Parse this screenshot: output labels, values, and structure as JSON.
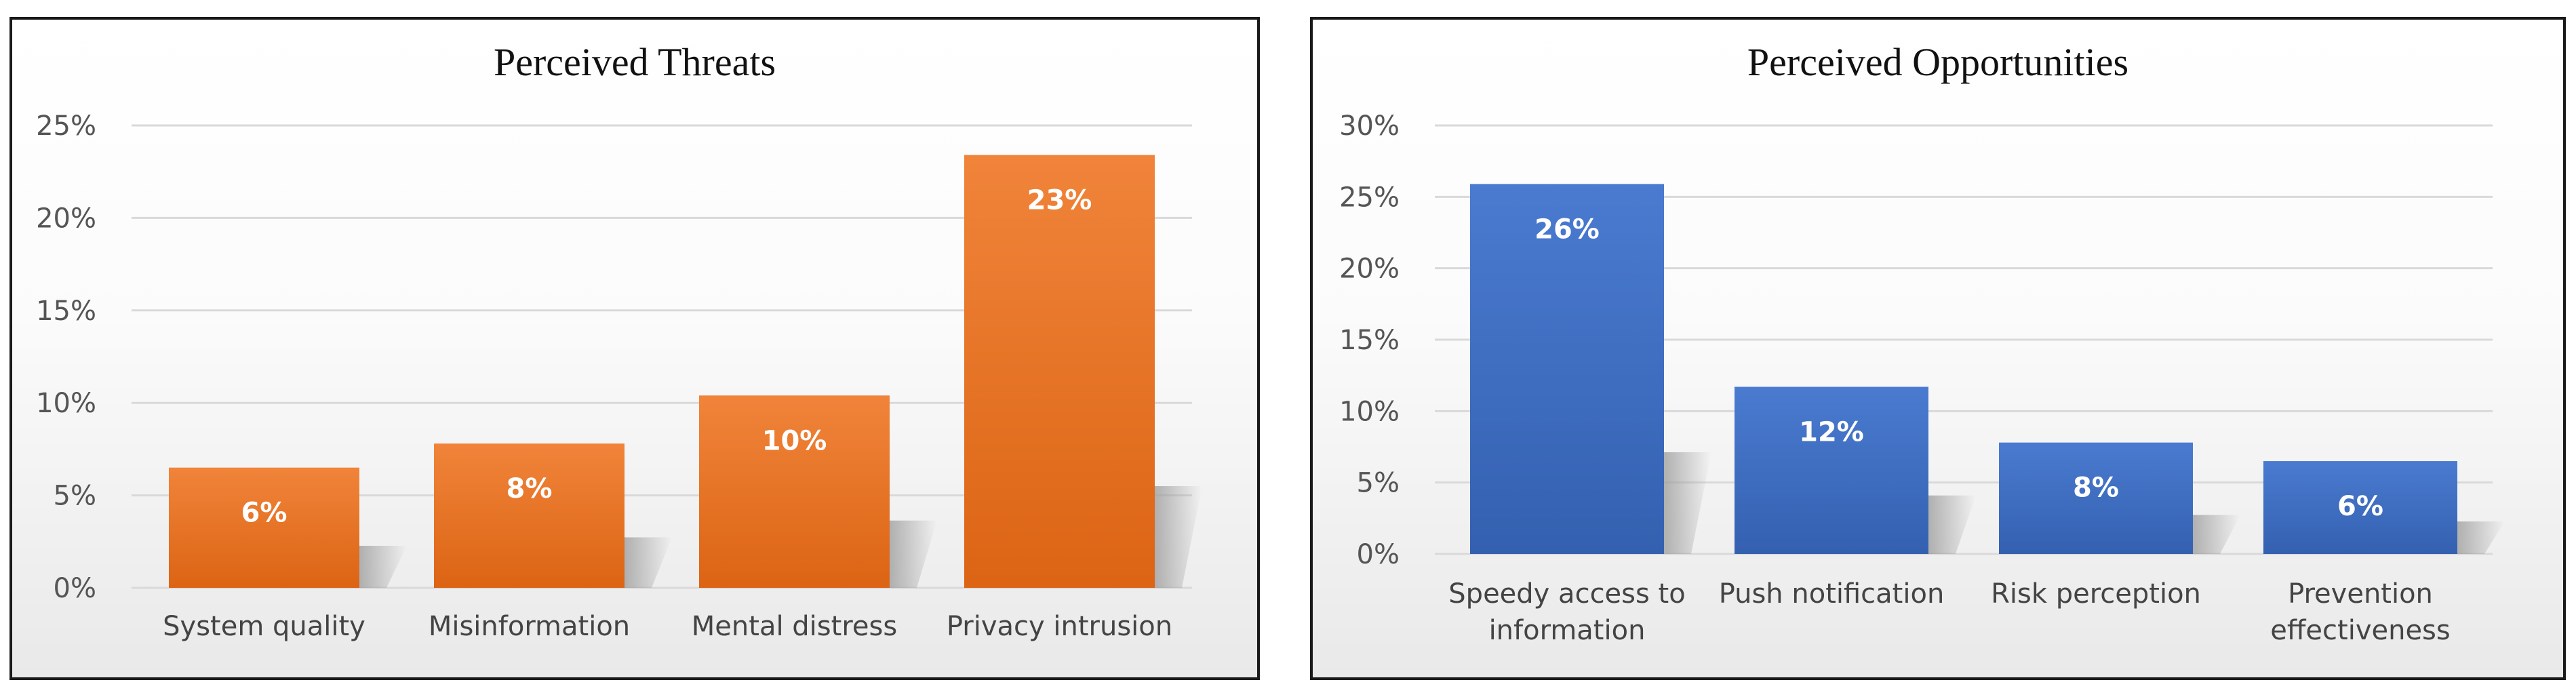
{
  "chart_data": [
    {
      "type": "bar",
      "title": "Perceived Threats",
      "categories": [
        [
          "System quality"
        ],
        [
          "Misinformation"
        ],
        [
          "Mental distress"
        ],
        [
          "Privacy intrusion"
        ]
      ],
      "values": [
        6.5,
        7.8,
        10.4,
        23.4
      ],
      "data_labels": [
        "6%",
        "8%",
        "10%",
        "23%"
      ],
      "yticks": [
        "0%",
        "5%",
        "10%",
        "15%",
        "20%",
        "25%"
      ],
      "ylim": [
        0,
        25
      ],
      "grid": true,
      "legend": "none",
      "colors": {
        "bar_top": "#f0843a",
        "bar_bottom": "#dc6414",
        "shadow": "#9a9a9a"
      }
    },
    {
      "type": "bar",
      "title": "Perceived Opportunities",
      "categories": [
        [
          "Speedy access to",
          "information"
        ],
        [
          "Push notification"
        ],
        [
          "Risk perception"
        ],
        [
          "Prevention",
          "effectiveness"
        ]
      ],
      "values": [
        25.9,
        11.7,
        7.8,
        6.5
      ],
      "data_labels": [
        "26%",
        "12%",
        "8%",
        "6%"
      ],
      "yticks": [
        "0%",
        "5%",
        "10%",
        "15%",
        "20%",
        "25%",
        "30%"
      ],
      "ylim": [
        0,
        30
      ],
      "grid": true,
      "legend": "none",
      "colors": {
        "bar_top": "#4a7bd0",
        "bar_bottom": "#3460b0",
        "shadow": "#9a9a9a"
      }
    }
  ]
}
